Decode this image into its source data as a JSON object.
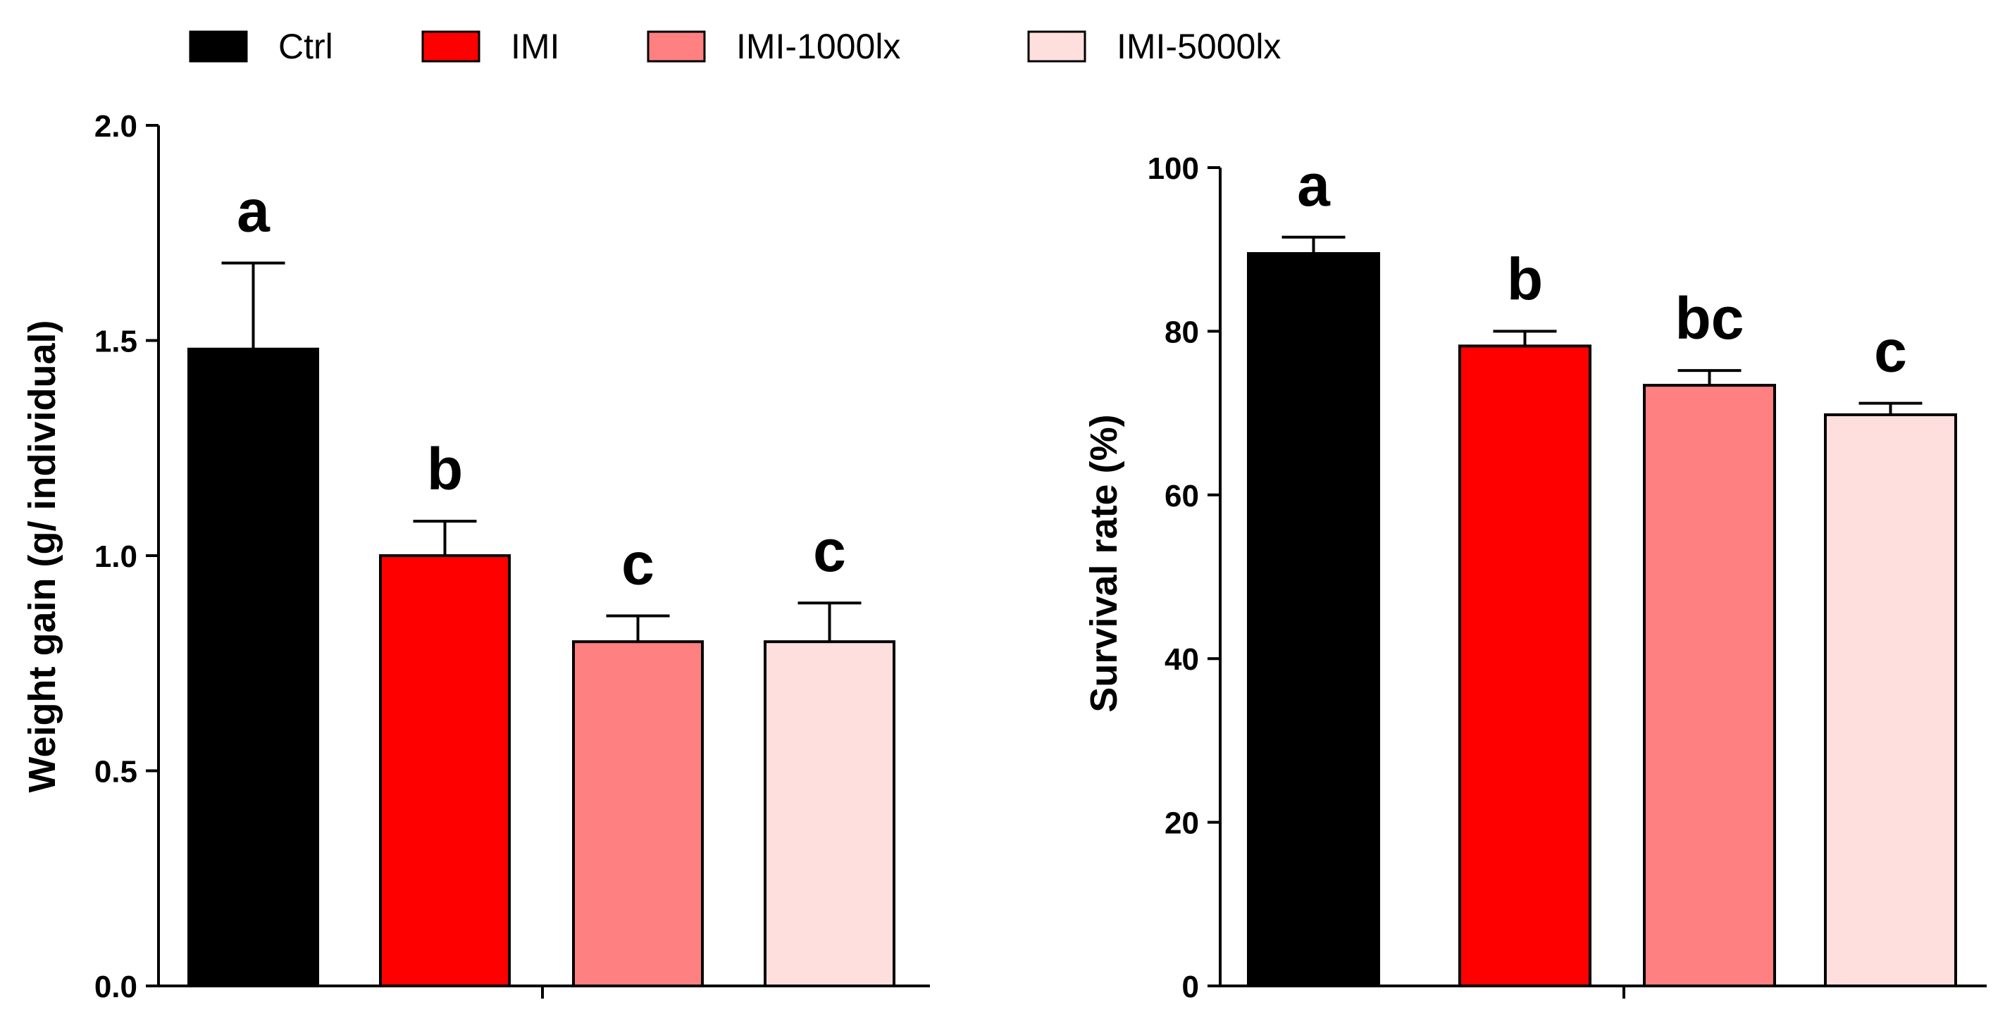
{
  "legend": {
    "entries": [
      {
        "label": "Ctrl",
        "color": "#000000"
      },
      {
        "label": "IMI",
        "color": "#ff0000"
      },
      {
        "label": "IMI-1000lx",
        "color": "#ff8080"
      },
      {
        "label": "IMI-5000lx",
        "color": "#ffdede"
      }
    ]
  },
  "chart_data": [
    {
      "type": "bar",
      "title": "",
      "xlabel": "",
      "ylabel": "Weight gain (g/ individual)",
      "ylim": [
        0,
        2.0
      ],
      "yticks": [
        "0.0",
        "0.5",
        "1.0",
        "1.5",
        "2.0"
      ],
      "tick_values": [
        0,
        0.5,
        1.0,
        1.5,
        2.0
      ],
      "categories": [
        "Ctrl",
        "IMI",
        "IMI-1000lx",
        "IMI-5000lx"
      ],
      "values": [
        1.48,
        1.0,
        0.8,
        0.8
      ],
      "error": [
        0.2,
        0.08,
        0.06,
        0.09
      ],
      "significance": [
        "a",
        "b",
        "c",
        "c"
      ],
      "colors": [
        "#000000",
        "#ff0000",
        "#ff8080",
        "#ffdede"
      ],
      "grid": false
    },
    {
      "type": "bar",
      "title": "",
      "xlabel": "",
      "ylabel": "Survival rate (%)",
      "ylim": [
        0,
        100
      ],
      "yticks": [
        "0",
        "20",
        "40",
        "60",
        "80",
        "100"
      ],
      "tick_values": [
        0,
        20,
        40,
        60,
        80,
        100
      ],
      "categories": [
        "Ctrl",
        "IMI",
        "IMI-1000lx",
        "IMI-5000lx"
      ],
      "values": [
        89.5,
        78.2,
        73.4,
        69.8
      ],
      "error": [
        2.0,
        1.8,
        1.8,
        1.4
      ],
      "significance": [
        "a",
        "b",
        "bc",
        "c"
      ],
      "colors": [
        "#000000",
        "#ff0000",
        "#ff8080",
        "#ffdede"
      ],
      "grid": false
    }
  ]
}
